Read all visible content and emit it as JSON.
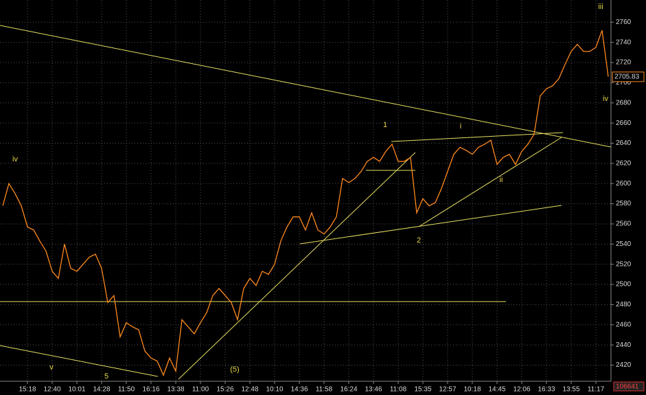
{
  "chart_data": {
    "type": "line",
    "color": "#ff8a1e",
    "categories": [
      null,
      null,
      null,
      null,
      "15:18",
      null,
      null,
      null,
      "12:40",
      null,
      null,
      null,
      "10:01",
      null,
      null,
      null,
      "14:28",
      null,
      null,
      null,
      "11:50",
      null,
      null,
      null,
      "16:16",
      null,
      null,
      null,
      "13:38",
      null,
      null,
      null,
      "11:00",
      null,
      null,
      null,
      "15:26",
      null,
      null,
      null,
      "12:48",
      null,
      null,
      null,
      "10:10",
      null,
      null,
      null,
      "14:36",
      null,
      null,
      null,
      "11:58",
      null,
      null,
      null,
      "16:24",
      null,
      null,
      null,
      "13:46",
      null,
      null,
      null,
      "11:08",
      null,
      null,
      null,
      "15:35",
      null,
      null,
      null,
      "12:57",
      null,
      null,
      null,
      "10:18",
      null,
      null,
      null,
      "14:45",
      null,
      null,
      null,
      "12:06",
      null,
      null,
      null,
      "16:33",
      null,
      null,
      null,
      "13:55",
      null,
      null,
      null,
      "11:17",
      null,
      null
    ],
    "values": [
      2578,
      2600,
      2590,
      2578,
      2557,
      2554,
      2543,
      2533,
      2513,
      2506,
      2540,
      2516,
      2513,
      2520,
      2527,
      2530,
      2516,
      2482,
      2489,
      2448,
      2462,
      2458,
      2455,
      2434,
      2427,
      2424,
      2410,
      2427,
      2414,
      2465,
      2458,
      2451,
      2462,
      2472,
      2489,
      2496,
      2489,
      2482,
      2465,
      2496,
      2506,
      2499,
      2513,
      2510,
      2520,
      2543,
      2557,
      2567,
      2567,
      2554,
      2571,
      2554,
      2550,
      2557,
      2567,
      2605,
      2601,
      2605,
      2612,
      2622,
      2626,
      2622,
      2632,
      2639,
      2622,
      2622,
      2626,
      2571,
      2585,
      2578,
      2581,
      2595,
      2612,
      2629,
      2636,
      2633,
      2629,
      2636,
      2639,
      2643,
      2619,
      2626,
      2629,
      2619,
      2632,
      2639,
      2649,
      2687,
      2694,
      2697,
      2704,
      2718,
      2731,
      2738,
      2731,
      2731,
      2735,
      2752,
      2706
    ],
    "ylim": [
      2404,
      2782
    ],
    "yticks": [
      2420,
      2440,
      2460,
      2480,
      2500,
      2520,
      2540,
      2560,
      2580,
      2600,
      2620,
      2640,
      2660,
      2680,
      2700,
      2720,
      2740,
      2760
    ],
    "grid": true,
    "last_price": 2705.83,
    "last_volume": 106641,
    "annotations": [
      "iv",
      "v",
      "5",
      "(5)",
      "1",
      "2",
      "i",
      "ii",
      "iii",
      "iv"
    ]
  }
}
